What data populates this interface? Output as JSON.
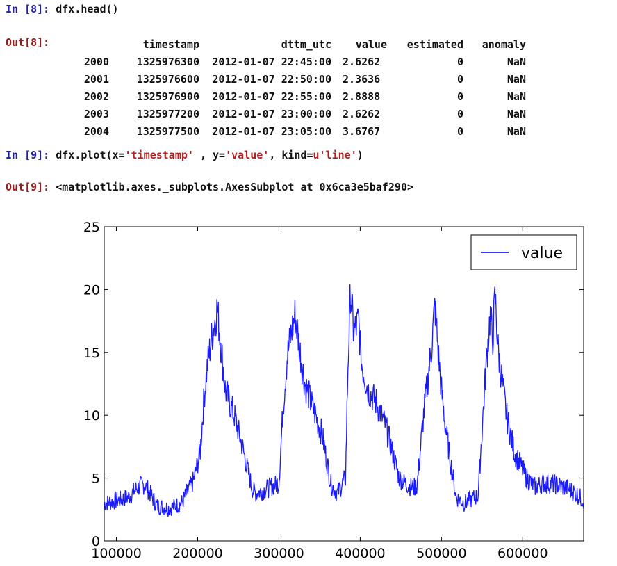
{
  "cells": {
    "in8": {
      "prompt": "In [8]:",
      "code": "dfx.head()"
    },
    "out8": {
      "prompt": "Out[8]:"
    },
    "in9": {
      "prompt": "In [9]:",
      "code_parts": [
        "dfx.plot(x=",
        "'timestamp'",
        " , y=",
        "'value'",
        ", kind=",
        "u'line'",
        ")"
      ]
    },
    "out9": {
      "prompt": "Out[9]:",
      "text": "<matplotlib.axes._subplots.AxesSubplot at 0x6ca3e5baf290>"
    }
  },
  "dataframe": {
    "columns": [
      "",
      "timestamp",
      "dttm_utc",
      "value",
      "estimated",
      "anomaly"
    ],
    "rows": [
      [
        "2000",
        "1325976300",
        "2012-01-07 22:45:00",
        "2.6262",
        "0",
        "NaN"
      ],
      [
        "2001",
        "1325976600",
        "2012-01-07 22:50:00",
        "2.3636",
        "0",
        "NaN"
      ],
      [
        "2002",
        "1325976900",
        "2012-01-07 22:55:00",
        "2.8888",
        "0",
        "NaN"
      ],
      [
        "2003",
        "1325977200",
        "2012-01-07 23:00:00",
        "2.6262",
        "0",
        "NaN"
      ],
      [
        "2004",
        "1325977500",
        "2012-01-07 23:05:00",
        "3.6767",
        "0",
        "NaN"
      ]
    ]
  },
  "chart_data": {
    "type": "line",
    "title": "",
    "xlabel": "",
    "ylabel": "",
    "xlim": [
      85000,
      675000
    ],
    "ylim": [
      0,
      25
    ],
    "xticks": [
      100000,
      200000,
      300000,
      400000,
      500000,
      600000
    ],
    "yticks": [
      0,
      5,
      10,
      15,
      20,
      25
    ],
    "xtick_labels": [
      "100000",
      "200000",
      "300000",
      "400000",
      "500000",
      "600000"
    ],
    "ytick_labels": [
      "0",
      "5",
      "10",
      "15",
      "20",
      "25"
    ],
    "legend": {
      "placement": "top-right",
      "entries": [
        "value"
      ]
    },
    "line_color": "#1a1aff",
    "series": [
      {
        "name": "value",
        "x": [
          85000,
          100000,
          115000,
          125000,
          135000,
          150000,
          165000,
          180000,
          195000,
          203000,
          208000,
          212000,
          218000,
          224000,
          228000,
          234000,
          245000,
          255000,
          262000,
          268000,
          272000,
          280000,
          300000,
          305000,
          310000,
          315000,
          320000,
          325000,
          332000,
          345000,
          353000,
          360000,
          364000,
          372000,
          382000,
          385000,
          388000,
          392000,
          398000,
          402000,
          410000,
          420000,
          432000,
          448000,
          458000,
          465000,
          470000,
          478000,
          488000,
          492000,
          496000,
          500000,
          505000,
          512000,
          518000,
          528000,
          545000,
          555000,
          560000,
          563000,
          566000,
          570000,
          575000,
          580000,
          590000,
          605000,
          615000,
          625000,
          640000,
          655000,
          665000,
          675000
        ],
        "y": [
          3,
          3.2,
          3.5,
          4.2,
          4.5,
          2.8,
          2.6,
          3,
          4.8,
          7,
          11.5,
          14,
          16.5,
          18.5,
          16,
          12,
          10,
          7.5,
          5.5,
          4,
          3.8,
          4,
          4.6,
          10.5,
          14.5,
          16.5,
          18,
          15.5,
          12.5,
          10,
          8.5,
          6,
          4.5,
          3.8,
          5,
          14,
          20,
          16.5,
          17.5,
          14,
          12,
          11,
          9,
          5,
          4.5,
          4.2,
          4.4,
          10,
          15.5,
          18.8,
          15,
          12,
          9,
          6,
          3.5,
          3,
          3.6,
          14,
          18,
          16,
          19.5,
          15,
          12.5,
          10,
          7,
          5,
          4.3,
          4.6,
          4.5,
          4.2,
          3.8,
          3.2
        ]
      }
    ]
  }
}
